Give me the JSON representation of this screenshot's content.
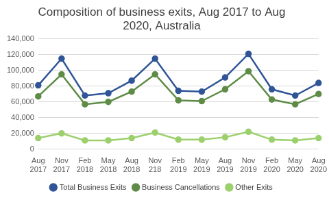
{
  "chart_data": {
    "type": "line",
    "title": "Composition of business exits, Aug 2017 to Aug 2020, Australia",
    "categories": [
      "Aug 2017",
      "Nov 2017",
      "Feb 2018",
      "May 2018",
      "Aug 2018",
      "Nov 218",
      "Feb 2019",
      "May 2019",
      "Aug 2019",
      "Nov 2019",
      "Feb 2020",
      "May 2020",
      "Aug 2020"
    ],
    "series": [
      {
        "name": "Total Business Exits",
        "color": "#2f5597",
        "marker": "circle",
        "line_style": "solid",
        "values": [
          81000,
          115000,
          68000,
          71000,
          87000,
          115000,
          74000,
          73000,
          91000,
          121000,
          76000,
          68000,
          84000
        ]
      },
      {
        "name": "Business Cancellations",
        "color": "#5e8c46",
        "marker": "circle",
        "line_style": "solid",
        "values": [
          67000,
          95000,
          57000,
          60000,
          73000,
          95000,
          62000,
          61000,
          76000,
          99000,
          63000,
          57000,
          70000
        ]
      },
      {
        "name": "Other Exits",
        "color": "#9bd06c",
        "marker": "circle",
        "line_style": "solid",
        "values": [
          14000,
          20000,
          11000,
          11000,
          14000,
          21000,
          12000,
          12000,
          15000,
          22000,
          12000,
          11000,
          14000
        ]
      }
    ],
    "ylim": [
      0,
      140000
    ],
    "yticks": [
      0,
      {
        "value": 20000,
        "label": "20,000"
      },
      {
        "value": 40000,
        "label": "40,000"
      },
      {
        "value": 60000,
        "label": "60,000"
      },
      {
        "value": 80000,
        "label": "80,000"
      },
      {
        "value": 100000,
        "label": "100,000"
      },
      {
        "value": 120000,
        "label": "120,000"
      },
      {
        "value": 140000,
        "label": "140,000"
      }
    ],
    "grid": true,
    "legend": "bottom"
  }
}
